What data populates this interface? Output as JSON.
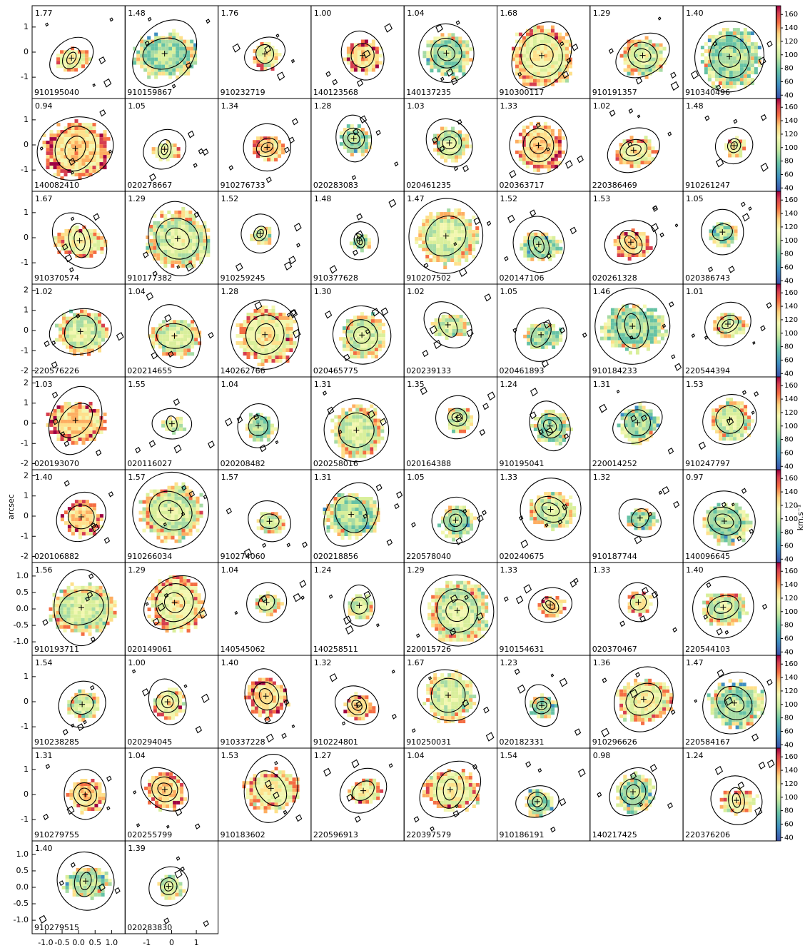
{
  "chart_data": {
    "type": "image-grid",
    "y_label": "arcsec",
    "colorbar": {
      "label": "km.s⁻¹",
      "lim": [
        35,
        173
      ],
      "ticks": [
        40,
        60,
        80,
        100,
        120,
        140,
        160
      ]
    },
    "rows": [
      {
        "ylim": [
          -1.85,
          1.85
        ],
        "yticks": [
          -1,
          0,
          1
        ],
        "panels": [
          {
            "label": "1.77",
            "id": "910195040"
          },
          {
            "label": "1.48",
            "id": "910159867"
          },
          {
            "label": "1.76",
            "id": "910232719"
          },
          {
            "label": "1.00",
            "id": "140123568"
          },
          {
            "label": "1.04",
            "id": "140137235"
          },
          {
            "label": "1.68",
            "id": "910300117"
          },
          {
            "label": "1.29",
            "id": "910191357"
          },
          {
            "label": "1.40",
            "id": "910340496"
          }
        ]
      },
      {
        "ylim": [
          -1.85,
          1.85
        ],
        "yticks": [
          -1,
          0,
          1
        ],
        "panels": [
          {
            "label": "0.94",
            "id": "140082410"
          },
          {
            "label": "1.05",
            "id": "020278667"
          },
          {
            "label": "1.34",
            "id": "910276733"
          },
          {
            "label": "1.28",
            "id": "020283083"
          },
          {
            "label": "1.03",
            "id": "020461235"
          },
          {
            "label": "1.33",
            "id": "020363717"
          },
          {
            "label": "1.02",
            "id": "220386469"
          },
          {
            "label": "1.48",
            "id": "910261247"
          }
        ]
      },
      {
        "ylim": [
          -1.85,
          1.85
        ],
        "yticks": [
          -1,
          0,
          1
        ],
        "panels": [
          {
            "label": "1.67",
            "id": "910370574"
          },
          {
            "label": "1.29",
            "id": "910177382"
          },
          {
            "label": "1.52",
            "id": "910259245"
          },
          {
            "label": "1.48",
            "id": "910377628"
          },
          {
            "label": "1.47",
            "id": "910207502"
          },
          {
            "label": "1.52",
            "id": "020147106"
          },
          {
            "label": "1.53",
            "id": "020261328"
          },
          {
            "label": "1.05",
            "id": "020386743"
          }
        ]
      },
      {
        "ylim": [
          -2.3,
          2.3
        ],
        "yticks": [
          -2,
          -1,
          0,
          1,
          2
        ],
        "panels": [
          {
            "label": "1.02",
            "id": "220576226"
          },
          {
            "label": "1.04",
            "id": "020214655"
          },
          {
            "label": "1.28",
            "id": "140262766"
          },
          {
            "label": "1.30",
            "id": "020465775"
          },
          {
            "label": "1.02",
            "id": "020239133"
          },
          {
            "label": "1.05",
            "id": "020461893"
          },
          {
            "label": "1.46",
            "id": "910184233"
          },
          {
            "label": "1.01",
            "id": "220544394"
          }
        ]
      },
      {
        "ylim": [
          -2.3,
          2.3
        ],
        "yticks": [
          -2,
          -1,
          0,
          1,
          2
        ],
        "panels": [
          {
            "label": "1.03",
            "id": "020193070"
          },
          {
            "label": "1.55",
            "id": "020116027"
          },
          {
            "label": "1.04",
            "id": "020208482"
          },
          {
            "label": "1.31",
            "id": "020258016"
          },
          {
            "label": "1.35",
            "id": "020164388"
          },
          {
            "label": "1.24",
            "id": "910195041"
          },
          {
            "label": "1.31",
            "id": "220014252"
          },
          {
            "label": "1.53",
            "id": "910247797"
          }
        ]
      },
      {
        "ylim": [
          -2.3,
          2.3
        ],
        "yticks": [
          -2,
          -1,
          0,
          1,
          2
        ],
        "panels": [
          {
            "label": "1.40",
            "id": "020106882"
          },
          {
            "label": "1.57",
            "id": "910266034"
          },
          {
            "label": "1.57",
            "id": "910274060"
          },
          {
            "label": "1.31",
            "id": "020218856"
          },
          {
            "label": "1.05",
            "id": "220578040"
          },
          {
            "label": "1.33",
            "id": "020240675"
          },
          {
            "label": "1.32",
            "id": "910187744"
          },
          {
            "label": "0.97",
            "id": "140096645"
          }
        ]
      },
      {
        "ylim": [
          -1.41,
          1.41
        ],
        "yticks": [
          {
            "value": -1.0,
            "label": "-1.0"
          },
          -0.5,
          {
            "value": 0.0,
            "label": "0.0"
          },
          0.5,
          {
            "value": 1.0,
            "label": "1.0"
          }
        ],
        "panels": [
          {
            "label": "1.56",
            "id": "910193711"
          },
          {
            "label": "1.29",
            "id": "020149061"
          },
          {
            "label": "1.04",
            "id": "140545062"
          },
          {
            "label": "1.24",
            "id": "140258511"
          },
          {
            "label": "1.29",
            "id": "220015726"
          },
          {
            "label": "1.33",
            "id": "910154631"
          },
          {
            "label": "1.33",
            "id": "020370467"
          },
          {
            "label": "1.40",
            "id": "220544103"
          }
        ]
      },
      {
        "ylim": [
          -1.85,
          1.85
        ],
        "yticks": [
          -1,
          0,
          1
        ],
        "panels": [
          {
            "label": "1.54",
            "id": "910238285"
          },
          {
            "label": "1.00",
            "id": "020294045"
          },
          {
            "label": "1.40",
            "id": "910337228"
          },
          {
            "label": "1.32",
            "id": "910224801"
          },
          {
            "label": "1.67",
            "id": "910250031"
          },
          {
            "label": "1.23",
            "id": "020182331"
          },
          {
            "label": "1.36",
            "id": "910296626"
          },
          {
            "label": "1.47",
            "id": "220584167"
          }
        ]
      },
      {
        "ylim": [
          -1.85,
          1.85
        ],
        "yticks": [
          -1,
          0,
          1
        ],
        "panels": [
          {
            "label": "1.31",
            "id": "910279755"
          },
          {
            "label": "1.04",
            "id": "020255799"
          },
          {
            "label": "1.53",
            "id": "910183602"
          },
          {
            "label": "1.27",
            "id": "220596913"
          },
          {
            "label": "1.04",
            "id": "220397579"
          },
          {
            "label": "1.54",
            "id": "910186191"
          },
          {
            "label": "0.98",
            "id": "140217425"
          },
          {
            "label": "1.24",
            "id": "220376206"
          }
        ]
      },
      {
        "ylim": [
          -1.41,
          1.41
        ],
        "yticks": [
          {
            "value": -1.0,
            "label": "-1.0"
          },
          -0.5,
          {
            "value": 0.0,
            "label": "0.0"
          },
          0.5,
          {
            "value": 1.0,
            "label": "1.0"
          }
        ],
        "panels": [
          {
            "label": "1.40",
            "id": "910279515",
            "xlim": [
              -1.41,
              1.41
            ],
            "xticks": [
              {
                "value": -1.0,
                "label": "-1.0"
              },
              -0.5,
              {
                "value": 0.0,
                "label": "0.0"
              },
              0.5,
              {
                "value": 1.0,
                "label": "1.0"
              }
            ]
          },
          {
            "label": "1.39",
            "id": "020283830",
            "xlim": [
              -1.88,
              1.88
            ],
            "xticks": [
              -1,
              0,
              1
            ]
          }
        ]
      }
    ]
  }
}
